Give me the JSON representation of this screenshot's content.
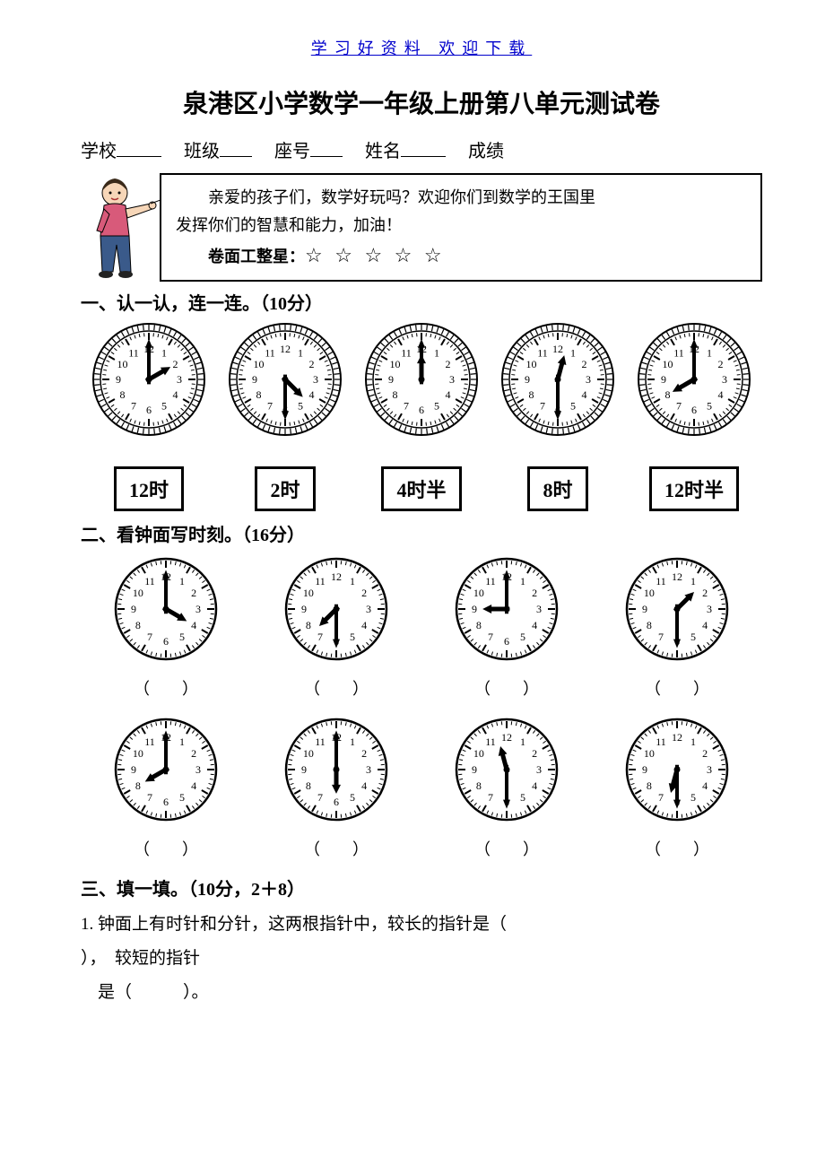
{
  "header_link": "学习好资料            欢迎下载",
  "title": "泉港区小学数学一年级上册第八单元测试卷",
  "info": {
    "school": "学校",
    "class": "班级",
    "seat": "座号",
    "name": "姓名",
    "score": "成绩"
  },
  "callout": {
    "line1": "亲爱的孩子们，数学好玩吗？欢迎你们到数学的王国里",
    "line2": "发挥你们的智慧和能力，加油！",
    "stars_label": "卷面工整星：",
    "stars": "☆ ☆ ☆ ☆ ☆"
  },
  "s1": {
    "heading": "一、认一认，连一连。（10分）",
    "clocks": [
      {
        "h": 2,
        "m": 0,
        "style": "fancy"
      },
      {
        "h": 4,
        "m": 30,
        "style": "fancy"
      },
      {
        "h": 12,
        "m": 0,
        "style": "fancy"
      },
      {
        "h": 12,
        "m": 30,
        "style": "fancy"
      },
      {
        "h": 8,
        "m": 0,
        "style": "fancy"
      }
    ],
    "labels": [
      "12时",
      "2时",
      "4时半",
      "8时",
      "12时半"
    ]
  },
  "s2": {
    "heading": "二、看钟面写时刻。（16分）",
    "row1": [
      {
        "h": 4,
        "m": 0
      },
      {
        "h": 7,
        "m": 30
      },
      {
        "h": 9,
        "m": 0
      },
      {
        "h": 1,
        "m": 30
      }
    ],
    "row2": [
      {
        "h": 8,
        "m": 0
      },
      {
        "h": 6,
        "m": 0
      },
      {
        "h": 11,
        "m": 30
      },
      {
        "h": 6,
        "m": 30
      }
    ],
    "paren": "（　　）"
  },
  "s3": {
    "heading": "三、填一填。（10分，2＋8）",
    "q1a": "1. 钟面上有时针和分针，这两根指针中，较长的指针是（",
    "q1b": "），　较短的指针",
    "q1c": "　是（　　　）。"
  },
  "clock_style": {
    "radius": 58,
    "small_radius": 56,
    "face_color": "#ffffff",
    "tick_color": "#000000",
    "hand_color": "#000000",
    "num_font": 10,
    "fancy_ring": true
  }
}
